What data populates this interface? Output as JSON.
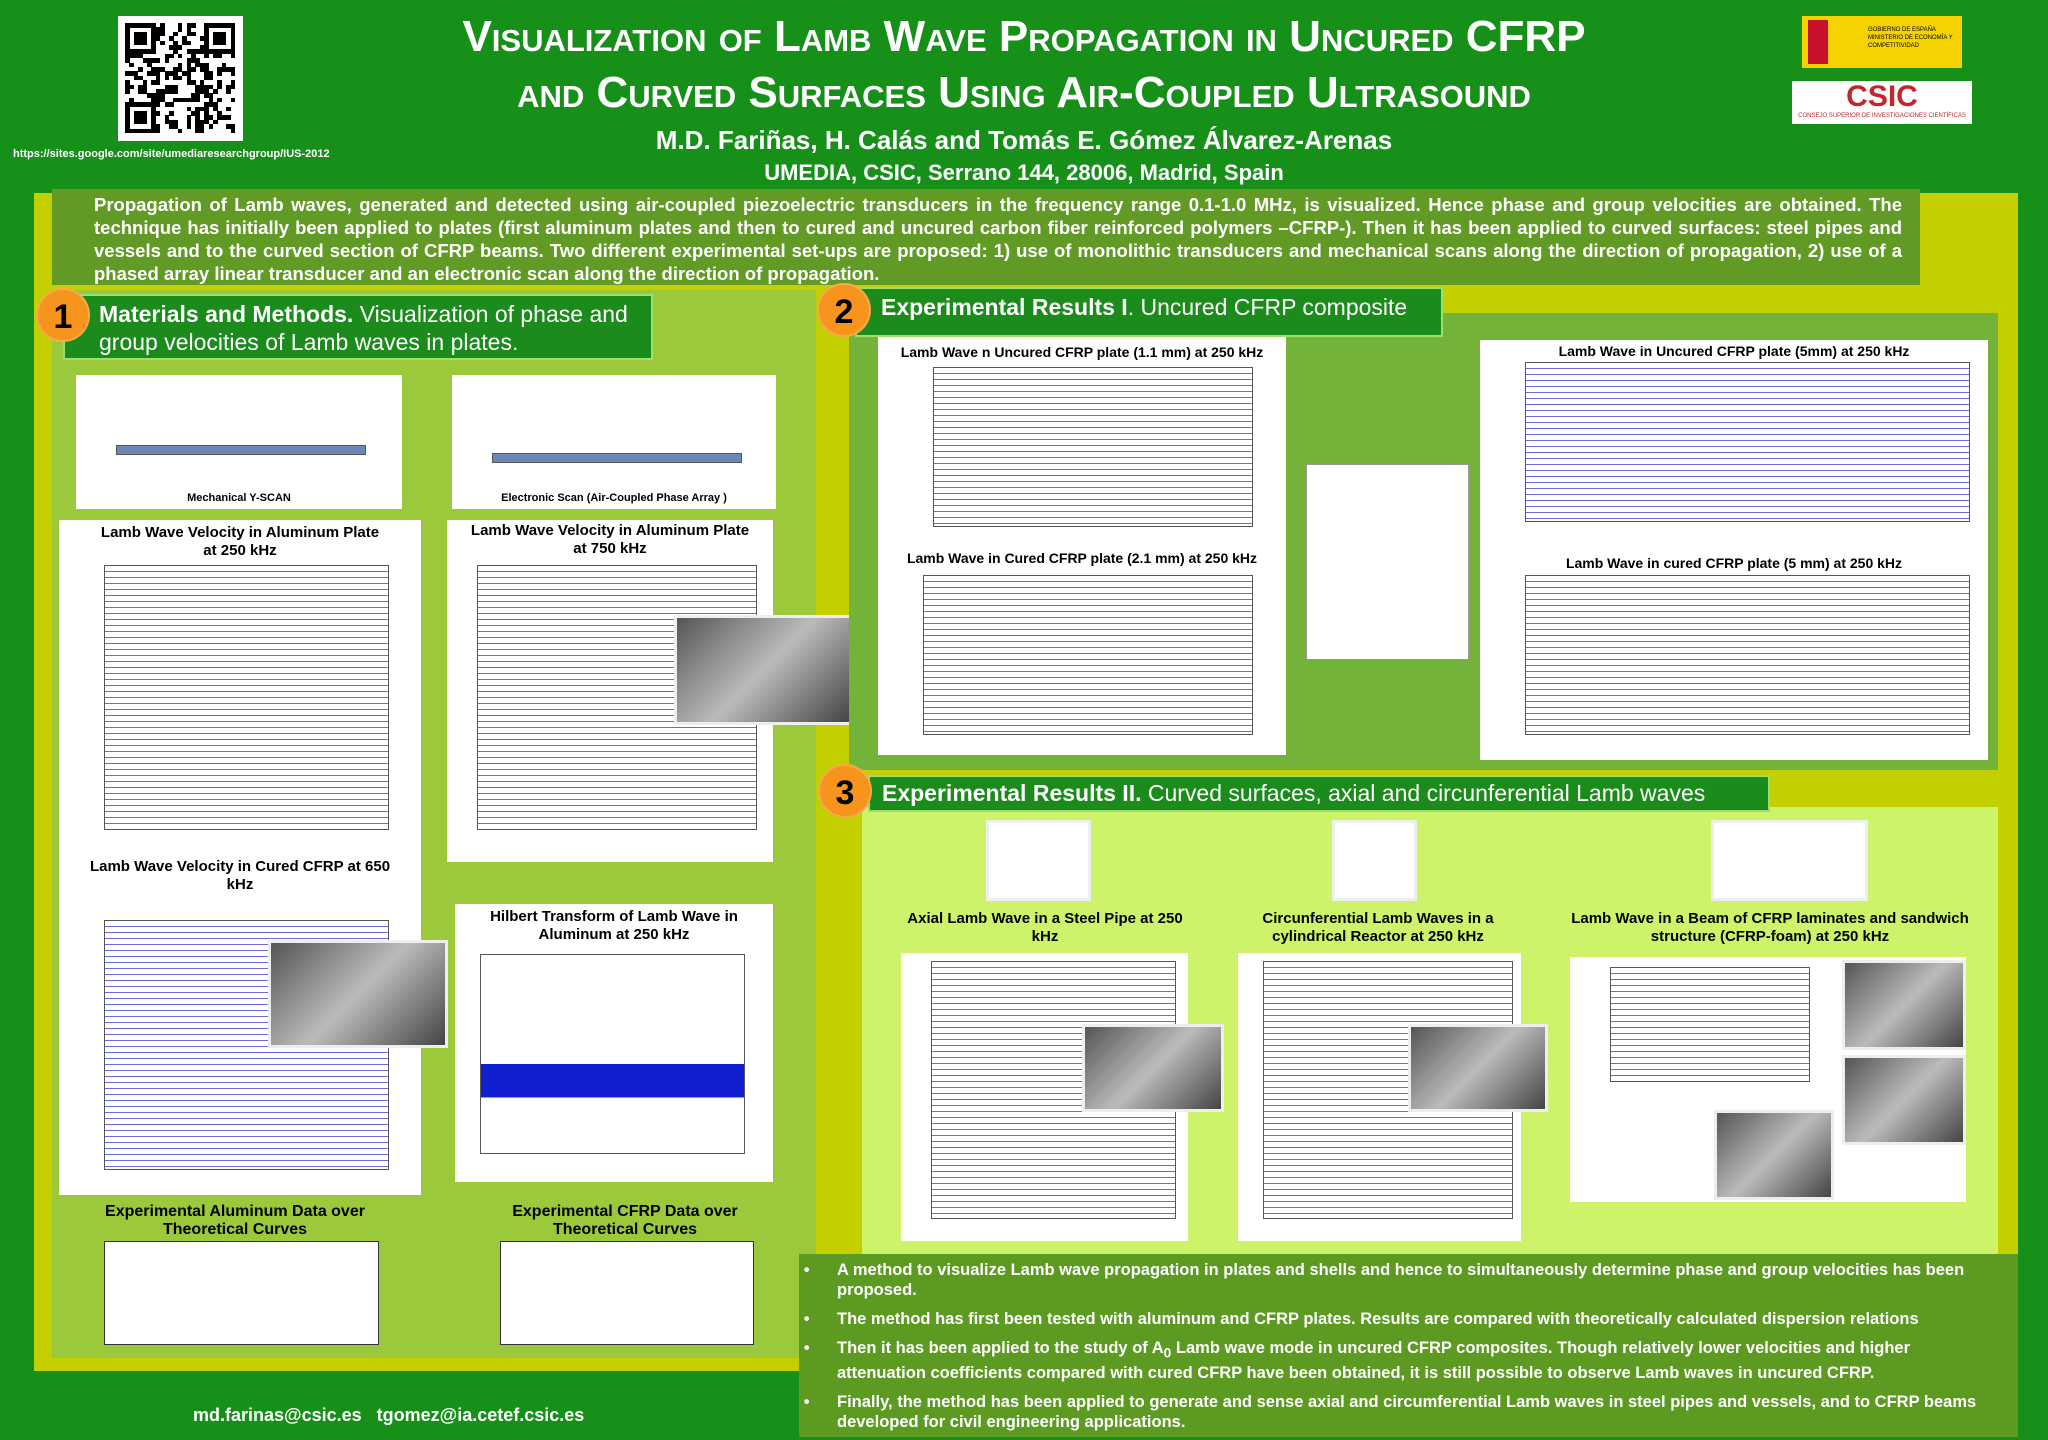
{
  "header": {
    "url": "https://sites.google.com/site/umediaresearchgroup/IUS-2012",
    "title_line1": "Visualization of Lamb Wave Propagation in Uncured CFRP",
    "title_line2": "and Curved Surfaces Using Air-Coupled Ultrasound",
    "authors": "M.D. Fariñas, H. Calás and Tomás E. Gómez Álvarez-Arenas",
    "affiliation": "UMEDIA, CSIC, Serrano 144, 28006, Madrid, Spain",
    "logo_gov": [
      "GOBIERNO DE ESPAÑA",
      "MINISTERIO DE ECONOMÍA Y COMPETITIVIDAD"
    ],
    "logo_csic": [
      "CSIC",
      "CONSEJO SUPERIOR DE INVESTIGACIONES CIENTÍFICAS"
    ]
  },
  "abstract": "Propagation of Lamb waves, generated and detected using air-coupled piezoelectric transducers in the frequency range 0.1-1.0 MHz, is visualized. Hence phase and group velocities are obtained. The technique has initially been applied to plates (first aluminum plates and then to cured and uncured carbon fiber reinforced polymers –CFRP-). Then it has been applied to curved surfaces: steel pipes and vessels and to the curved section of CFRP beams. Two different experimental set-ups are proposed: 1) use of monolithic transducers and mechanical scans along the direction of propagation, 2) use of a phased array linear transducer and an electronic scan along the direction of propagation.",
  "sections": [
    {
      "number": "1",
      "title": "Materials and Methods.",
      "subtitle": " Visualization of phase and group velocities of Lamb waves in plates.",
      "figures": [
        "Mechanical Y-SCAN",
        "Electronic Scan (Air-Coupled Phase Array )",
        "Lamb Wave Velocity in Aluminum Plate at 250 kHz",
        "Lamb Wave Velocity in Aluminum Plate at 750 kHz",
        "Lamb Wave Velocity in Cured CFRP at 650 kHz",
        "Hilbert Transform of Lamb Wave in Aluminum at 250 kHz",
        "Experimental Aluminum Data over Theoretical Curves",
        "Experimental CFRP Data over Theoretical Curves"
      ]
    },
    {
      "number": "2",
      "title": "Experimental Results I",
      "subtitle": ". Uncured CFRP composite",
      "figures": [
        "Lamb Wave n Uncured CFRP plate (1.1 mm) at 250 kHz",
        "Lamb Wave in Cured CFRP plate (2.1 mm) at 250 kHz",
        "Lamb Wave in Uncured CFRP plate (5mm) at 250 kHz",
        "Lamb Wave in cured CFRP plate (5 mm) at 250 kHz"
      ]
    },
    {
      "number": "3",
      "title": "Experimental Results II.",
      "subtitle": " Curved surfaces, axial and circunferential Lamb waves",
      "figures": [
        "Axial Lamb Wave in a Steel Pipe at 250 kHz",
        "Circunferential Lamb Waves  in a cylindrical Reactor at 250 kHz",
        "Lamb Wave in a Beam of CFRP laminates and sandwich structure (CFRP-foam) at 250 kHz"
      ]
    }
  ],
  "conclusions": [
    "A method to visualize Lamb wave propagation in plates and shells and hence to simultaneously determine phase and group velocities has been proposed.",
    "The method has first been tested with aluminum and CFRP plates. Results are compared with theoretically calculated dispersion relations",
    {
      "before": "Then it has  been applied to the study of A",
      "sub": "0",
      "after": " Lamb wave mode in uncured CFRP composites. Though relatively lower velocities and higher attenuation coefficients compared with cured CFRP have been obtained, it is still possible to observe Lamb waves in uncured CFRP."
    },
    "Finally, the method has been applied to generate and sense axial and circumferential Lamb waves in steel pipes and vessels, and to CFRP beams developed for civil engineering applications."
  ],
  "contacts": [
    "md.farinas@csic.es",
    "tgomez@ia.cetef.csic.es"
  ]
}
